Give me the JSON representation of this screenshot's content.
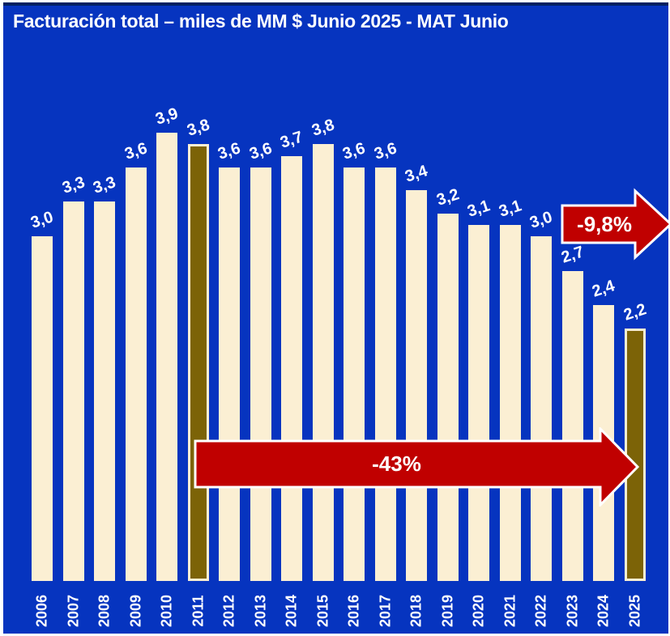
{
  "page_title": "Facturación total – miles de MM $ Junio 2025 - MAT Junio",
  "colors": {
    "background": "#0634BF",
    "top_border": "#002060",
    "bar": "#FBEFD3",
    "bar_highlight": "#7C6307",
    "arrow_fill": "#C00000",
    "arrow_outline": "#FFFFFF",
    "text": "#FFFFFF"
  },
  "chart_data": {
    "type": "bar",
    "title": "Facturación total – miles de MM $ Junio 2025 - MAT Junio",
    "categories": [
      "2006",
      "2007",
      "2008",
      "2009",
      "2010",
      "2011",
      "2012",
      "2013",
      "2014",
      "2015",
      "2016",
      "2017",
      "2018",
      "2019",
      "2020",
      "2021",
      "2022",
      "2023",
      "2024",
      "2025"
    ],
    "values": [
      3.0,
      3.3,
      3.3,
      3.6,
      3.9,
      3.8,
      3.6,
      3.6,
      3.7,
      3.8,
      3.6,
      3.6,
      3.4,
      3.2,
      3.1,
      3.1,
      3.0,
      2.7,
      2.4,
      2.2
    ],
    "labels": [
      "3,0",
      "3,3",
      "3,3",
      "3,6",
      "3,9",
      "3,8",
      "3,6",
      "3,6",
      "3,7",
      "3,8",
      "3,6",
      "3,6",
      "3,4",
      "3,2",
      "3,1",
      "3,1",
      "3,0",
      "2,7",
      "2,4",
      "2,2"
    ],
    "highlighted_categories": [
      "2011",
      "2025"
    ],
    "xlabel": "",
    "ylabel": "",
    "ylim": [
      0,
      4
    ],
    "grid": false,
    "legend": false,
    "annotations": [
      {
        "text": "-9,8%",
        "type": "arrow-right",
        "meaning": "last-year variation"
      },
      {
        "text": "-43%",
        "type": "arrow-right",
        "meaning": "variation 2011 to 2025",
        "span": "2011-2025"
      }
    ]
  }
}
